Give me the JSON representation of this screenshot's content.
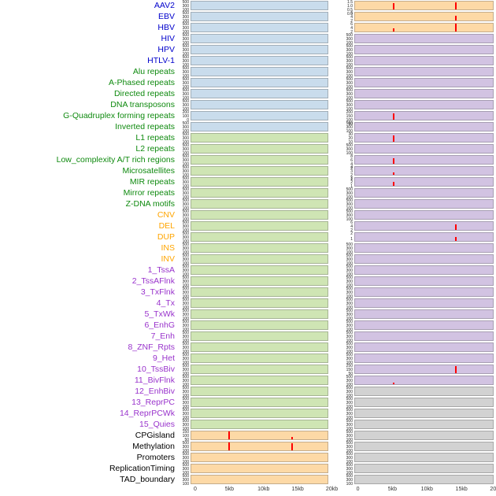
{
  "figure": {
    "xticks": [
      "0",
      "5kb",
      "10kb",
      "15kb",
      "20kb"
    ],
    "default_yticks": [
      "500",
      "300",
      "100"
    ],
    "spike_color": "#ff0000",
    "palette": {
      "blue": "#c9dcec",
      "green": "#cfe5b4",
      "orange": "#fdd9a6",
      "purple": "#d2c3e2",
      "gray": "#d2d2d2"
    },
    "label_colors": {
      "virus": "#0000cc",
      "repeats": "#0f8a0f",
      "sv": "#ffa500",
      "chromhmm": "#9933cc",
      "genomic": "#000000"
    }
  },
  "chart_data": {
    "type": "area",
    "title": "",
    "xlabel": "",
    "ylabel": "",
    "x_axis": {
      "range_kb": [
        0,
        20
      ],
      "ticks": [
        "0",
        "5kb",
        "10kb",
        "15kb",
        "20kb"
      ]
    },
    "legend": "none",
    "description": "Two columns of flat genome-feature density tracks over a 0-20kb window; red vertical spikes mark enriched positions (x = percent of window, h = percent of track height).",
    "rows": [
      {
        "label": "AAV2",
        "group": "virus",
        "left": {
          "c": "blue"
        },
        "right": {
          "c": "orange",
          "t": [
            "1.5",
            "1.0",
            "0.5",
            "0.0"
          ],
          "s": [
            [
              28,
              85
            ],
            [
              73,
              92
            ]
          ]
        }
      },
      {
        "label": "EBV",
        "group": "virus",
        "left": {
          "c": "blue"
        },
        "right": {
          "c": "orange",
          "t": [
            "6",
            "4",
            "2"
          ],
          "s": [
            [
              73,
              60
            ]
          ]
        }
      },
      {
        "label": "HBV",
        "group": "virus",
        "left": {
          "c": "blue"
        },
        "right": {
          "c": "orange",
          "t": [
            "6",
            "4",
            "2"
          ],
          "s": [
            [
              28,
              45
            ],
            [
              73,
              100
            ]
          ]
        }
      },
      {
        "label": "HIV",
        "group": "virus",
        "left": {
          "c": "blue"
        },
        "right": {
          "c": "purple"
        }
      },
      {
        "label": "HPV",
        "group": "virus",
        "left": {
          "c": "blue"
        },
        "right": {
          "c": "purple"
        }
      },
      {
        "label": "HTLV-1",
        "group": "virus",
        "left": {
          "c": "blue"
        },
        "right": {
          "c": "purple"
        }
      },
      {
        "label": "Alu repeats",
        "group": "repeats",
        "left": {
          "c": "blue"
        },
        "right": {
          "c": "purple"
        }
      },
      {
        "label": "A-Phased repeats",
        "group": "repeats",
        "left": {
          "c": "blue"
        },
        "right": {
          "c": "purple"
        }
      },
      {
        "label": "Directed repeats",
        "group": "repeats",
        "left": {
          "c": "blue"
        },
        "right": {
          "c": "purple"
        }
      },
      {
        "label": "DNA transposons",
        "group": "repeats",
        "left": {
          "c": "blue"
        },
        "right": {
          "c": "purple"
        }
      },
      {
        "label": "G-Quadruplex forming repeats",
        "group": "repeats",
        "left": {
          "c": "blue",
          "t": [
            "200",
            "100",
            "0"
          ]
        },
        "right": {
          "c": "purple",
          "t": [
            "200",
            "150",
            "100",
            "50"
          ],
          "s": [
            [
              28,
              85
            ]
          ]
        }
      },
      {
        "label": "Inverted repeats",
        "group": "repeats",
        "left": {
          "c": "blue"
        },
        "right": {
          "c": "purple"
        }
      },
      {
        "label": "L1 repeats",
        "group": "repeats",
        "left": {
          "c": "green"
        },
        "right": {
          "c": "purple",
          "t": [
            "30",
            "20",
            "10"
          ],
          "s": [
            [
              28,
              80
            ]
          ]
        }
      },
      {
        "label": "L2 repeats",
        "group": "repeats",
        "left": {
          "c": "green"
        },
        "right": {
          "c": "purple"
        }
      },
      {
        "label": "Low_complexity A/T rich regions",
        "group": "repeats",
        "left": {
          "c": "green"
        },
        "right": {
          "c": "purple",
          "t": [
            "8",
            "6",
            "4",
            "2"
          ],
          "s": [
            [
              28,
              75
            ]
          ]
        }
      },
      {
        "label": "Microsatellites",
        "group": "repeats",
        "left": {
          "c": "green"
        },
        "right": {
          "c": "purple",
          "t": [
            "4",
            "3",
            "2",
            "1"
          ],
          "s": [
            [
              28,
              35
            ]
          ]
        }
      },
      {
        "label": "MIR repeats",
        "group": "repeats",
        "left": {
          "c": "green"
        },
        "right": {
          "c": "purple",
          "t": [
            "3",
            "2",
            "1"
          ],
          "s": [
            [
              28,
              50
            ]
          ]
        }
      },
      {
        "label": "Mirror repeats",
        "group": "repeats",
        "left": {
          "c": "green"
        },
        "right": {
          "c": "purple"
        }
      },
      {
        "label": "Z-DNA motifs",
        "group": "repeats",
        "left": {
          "c": "green"
        },
        "right": {
          "c": "purple"
        }
      },
      {
        "label": "CNV",
        "group": "sv",
        "left": {
          "c": "green"
        },
        "right": {
          "c": "purple"
        }
      },
      {
        "label": "DEL",
        "group": "sv",
        "left": {
          "c": "green"
        },
        "right": {
          "c": "purple",
          "t": [
            "6",
            "4",
            "2"
          ],
          "s": [
            [
              73,
              75
            ]
          ]
        }
      },
      {
        "label": "DUP",
        "group": "sv",
        "left": {
          "c": "green"
        },
        "right": {
          "c": "purple",
          "t": [
            "2",
            "1"
          ],
          "s": [
            [
              73,
              55
            ]
          ]
        }
      },
      {
        "label": "INS",
        "group": "sv",
        "left": {
          "c": "green"
        },
        "right": {
          "c": "purple"
        }
      },
      {
        "label": "INV",
        "group": "sv",
        "left": {
          "c": "green"
        },
        "right": {
          "c": "purple"
        }
      },
      {
        "label": "1_TssA",
        "group": "chromhmm",
        "left": {
          "c": "green"
        },
        "right": {
          "c": "purple"
        }
      },
      {
        "label": "2_TssAFlnk",
        "group": "chromhmm",
        "left": {
          "c": "green"
        },
        "right": {
          "c": "purple"
        }
      },
      {
        "label": "3_TxFlnk",
        "group": "chromhmm",
        "left": {
          "c": "green"
        },
        "right": {
          "c": "purple"
        }
      },
      {
        "label": "4_Tx",
        "group": "chromhmm",
        "left": {
          "c": "green"
        },
        "right": {
          "c": "purple"
        }
      },
      {
        "label": "5_TxWk",
        "group": "chromhmm",
        "left": {
          "c": "green"
        },
        "right": {
          "c": "purple"
        }
      },
      {
        "label": "6_EnhG",
        "group": "chromhmm",
        "left": {
          "c": "green"
        },
        "right": {
          "c": "purple"
        }
      },
      {
        "label": "7_Enh",
        "group": "chromhmm",
        "left": {
          "c": "green"
        },
        "right": {
          "c": "purple"
        }
      },
      {
        "label": "8_ZNF_Rpts",
        "group": "chromhmm",
        "left": {
          "c": "green"
        },
        "right": {
          "c": "purple"
        }
      },
      {
        "label": "9_Het",
        "group": "chromhmm",
        "left": {
          "c": "green"
        },
        "right": {
          "c": "purple"
        }
      },
      {
        "label": "10_TssBiv",
        "group": "chromhmm",
        "left": {
          "c": "green"
        },
        "right": {
          "c": "purple",
          "t": [
            "250",
            "150",
            "50"
          ],
          "s": [
            [
              73,
              90
            ]
          ]
        }
      },
      {
        "label": "11_BivFlnk",
        "group": "chromhmm",
        "left": {
          "c": "green"
        },
        "right": {
          "c": "purple",
          "s": [
            [
              28,
              18
            ]
          ]
        }
      },
      {
        "label": "12_EnhBiv",
        "group": "chromhmm",
        "left": {
          "c": "green"
        },
        "right": {
          "c": "gray"
        }
      },
      {
        "label": "13_ReprPC",
        "group": "chromhmm",
        "left": {
          "c": "green"
        },
        "right": {
          "c": "gray"
        }
      },
      {
        "label": "14_ReprPCWk",
        "group": "chromhmm",
        "left": {
          "c": "green"
        },
        "right": {
          "c": "gray"
        }
      },
      {
        "label": "15_Quies",
        "group": "chromhmm",
        "left": {
          "c": "green"
        },
        "right": {
          "c": "gray"
        }
      },
      {
        "label": "CPGisland",
        "group": "genomic",
        "left": {
          "c": "orange",
          "t": [
            "150",
            "100",
            "50"
          ],
          "s": [
            [
              28,
              100
            ],
            [
              74,
              35
            ]
          ]
        },
        "right": {
          "c": "gray"
        }
      },
      {
        "label": "Methylation",
        "group": "genomic",
        "left": {
          "c": "orange",
          "s": [
            [
              28,
              100
            ],
            [
              74,
              95
            ]
          ]
        },
        "right": {
          "c": "gray"
        }
      },
      {
        "label": "Promoters",
        "group": "genomic",
        "left": {
          "c": "orange"
        },
        "right": {
          "c": "gray"
        }
      },
      {
        "label": "ReplicationTiming",
        "group": "genomic",
        "left": {
          "c": "orange"
        },
        "right": {
          "c": "gray"
        }
      },
      {
        "label": "TAD_boundary",
        "group": "genomic",
        "left": {
          "c": "orange"
        },
        "right": {
          "c": "gray"
        }
      }
    ]
  }
}
